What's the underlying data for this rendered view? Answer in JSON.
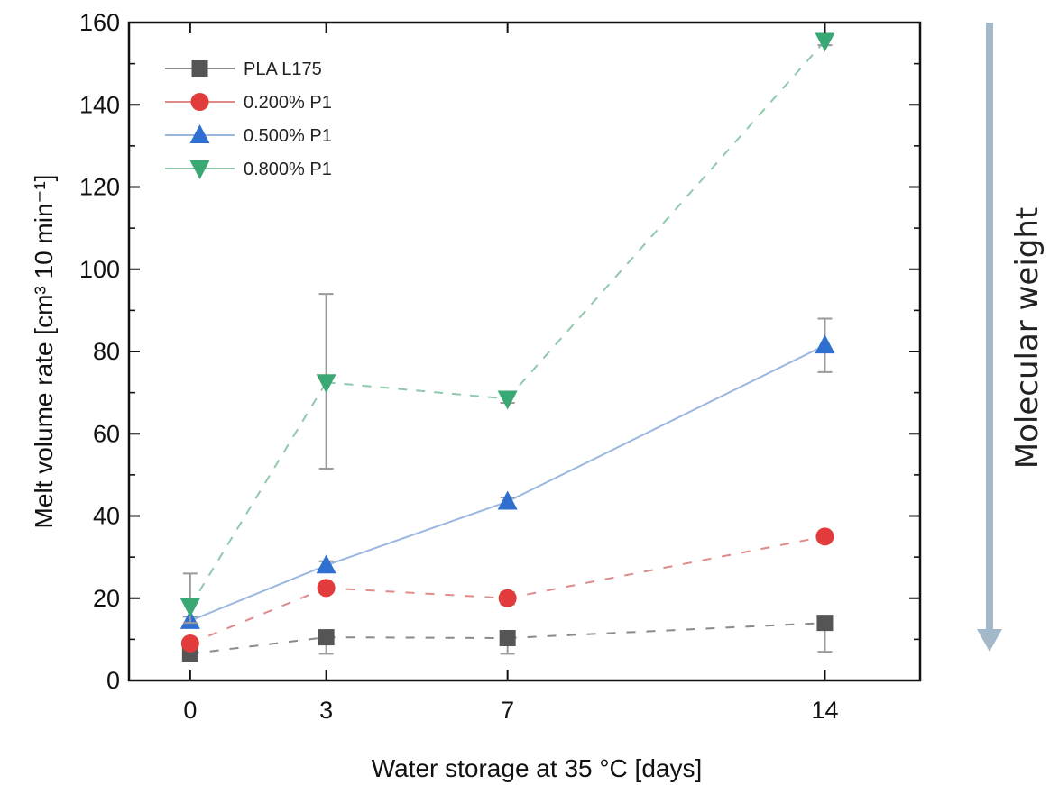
{
  "chart_data": {
    "type": "line",
    "title": "",
    "xlabel": "Water storage at 35 °C [days]",
    "ylabel": "Melt volume rate [cm³ 10 min⁻¹]",
    "x": [
      0,
      3,
      7,
      14
    ],
    "x_tick_labels": [
      "0",
      "3",
      "7",
      "14"
    ],
    "y_ticks": [
      0,
      20,
      40,
      60,
      80,
      100,
      120,
      140,
      160
    ],
    "ylim": [
      0,
      160
    ],
    "grid": false,
    "legend_position": "top-left",
    "series": [
      {
        "name": "PLA L175",
        "marker": "square",
        "color": "#555555",
        "line_color": "#8a8a8a",
        "values": [
          6.5,
          10.5,
          10.3,
          14.0
        ],
        "error_low": [
          5.5,
          6.5,
          6.5,
          7.0
        ],
        "error_high": [
          7.5,
          10.5,
          10.3,
          14.0
        ]
      },
      {
        "name": "0.200% P1",
        "marker": "circle",
        "color": "#e23b3b",
        "line_color": "#e08a8a",
        "values": [
          9.0,
          22.5,
          20.0,
          35.0
        ],
        "error_low": [
          8.0,
          21.5,
          18.5,
          34.0
        ],
        "error_high": [
          10.0,
          23.5,
          21.5,
          36.0
        ]
      },
      {
        "name": "0.500% P1",
        "marker": "triangle-up",
        "color": "#2f6fd0",
        "line_color": "#9ab7e0",
        "values": [
          14.5,
          28.0,
          43.5,
          81.5
        ],
        "error_low": [
          13.5,
          27.0,
          42.5,
          75.0
        ],
        "error_high": [
          15.5,
          29.0,
          44.5,
          88.0
        ]
      },
      {
        "name": "0.800% P1",
        "marker": "triangle-down",
        "color": "#3aa874",
        "line_color": "#8ec9ab",
        "values": [
          18.0,
          72.5,
          68.5,
          155.5
        ],
        "error_low": [
          14.0,
          51.5,
          67.5,
          154.5
        ],
        "error_high": [
          26.0,
          94.0,
          69.5,
          156.5
        ]
      }
    ],
    "annotation": {
      "text": "Molecular weight",
      "arrow_color": "#a3b8c8"
    }
  }
}
